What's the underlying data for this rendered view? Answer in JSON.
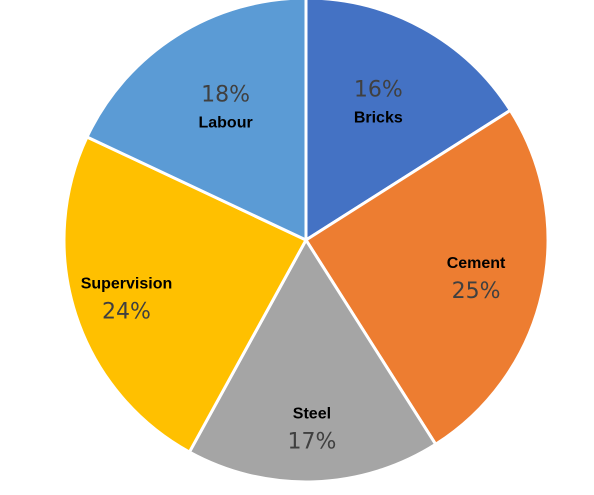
{
  "chart_data": {
    "type": "pie",
    "title": "",
    "start_angle_deg": 0,
    "direction": "clockwise",
    "slices": [
      {
        "name": "Bricks",
        "value": 16,
        "label": "16%",
        "color": "#4472C4"
      },
      {
        "name": "Cement",
        "value": 25,
        "label": "25%",
        "color": "#ED7D31"
      },
      {
        "name": "Steel",
        "value": 17,
        "label": "17%",
        "color": "#A5A5A5"
      },
      {
        "name": "Supervision",
        "value": 24,
        "label": "24%",
        "color": "#FFC000"
      },
      {
        "name": "Labour",
        "value": 18,
        "label": "18%",
        "color": "#5B9BD5"
      }
    ],
    "legend": "none"
  }
}
